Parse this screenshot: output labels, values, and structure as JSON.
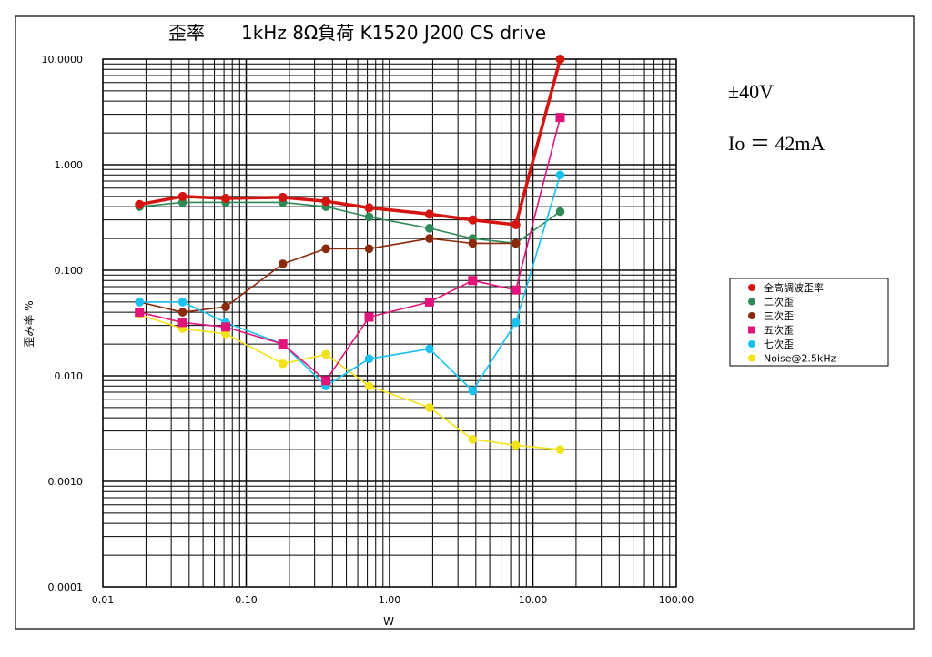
{
  "chart_data": {
    "type": "line",
    "title": "歪率　　1kHz 8Ω負荷  K1520  J200  CS drive",
    "xlabel": "W",
    "ylabel": "歪み率 %",
    "x_scale": "log",
    "y_scale": "log",
    "xlim": [
      0.01,
      100
    ],
    "ylim": [
      0.0001,
      10
    ],
    "grid": true,
    "legend_position": "right",
    "x_tick_labels": [
      "0.01",
      "0.10",
      "1.00",
      "10.00",
      "100.00"
    ],
    "y_tick_labels": [
      "0.0001",
      "0.0010",
      "0.010",
      "0.100",
      "1.000",
      "10.0000"
    ],
    "annotations": [
      "±40V",
      "Io ＝ 42mA"
    ],
    "series": [
      {
        "name": "全高調波歪率",
        "color": "#d4140f",
        "marker": "circle",
        "x": [
          0.018,
          0.036,
          0.072,
          0.18,
          0.36,
          0.72,
          1.9,
          3.8,
          7.6,
          15.5
        ],
        "y": [
          0.42,
          0.5,
          0.48,
          0.49,
          0.45,
          0.39,
          0.34,
          0.3,
          0.27,
          10
        ]
      },
      {
        "name": "二次歪",
        "color": "#2e8b57",
        "marker": "circle",
        "x": [
          0.018,
          0.036,
          0.072,
          0.18,
          0.36,
          0.72,
          1.9,
          3.8,
          7.6,
          15.5
        ],
        "y": [
          0.4,
          0.44,
          0.44,
          0.44,
          0.4,
          0.32,
          0.25,
          0.2,
          0.18,
          0.36
        ]
      },
      {
        "name": "三次歪",
        "color": "#8b2a0b",
        "marker": "circle",
        "x": [
          0.018,
          0.036,
          0.072,
          0.18,
          0.36,
          0.72,
          1.9,
          3.8,
          7.6
        ],
        "y": [
          0.05,
          0.04,
          0.045,
          0.115,
          0.16,
          0.16,
          0.2,
          0.18,
          0.18
        ]
      },
      {
        "name": "五次歪",
        "color": "#e0147a",
        "marker": "square",
        "x": [
          0.018,
          0.036,
          0.072,
          0.18,
          0.36,
          0.72,
          1.9,
          3.8,
          7.6,
          15.5
        ],
        "y": [
          0.04,
          0.032,
          0.029,
          0.02,
          0.009,
          0.036,
          0.05,
          0.08,
          0.065,
          2.8
        ]
      },
      {
        "name": "七次歪",
        "color": "#18c1ef",
        "marker": "circle",
        "x": [
          0.018,
          0.036,
          0.072,
          0.18,
          0.36,
          0.72,
          1.9,
          3.8,
          7.6,
          15.5
        ],
        "y": [
          0.05,
          0.05,
          0.032,
          0.02,
          0.008,
          0.0145,
          0.018,
          0.0072,
          0.032,
          0.8
        ]
      },
      {
        "name": "Noise@2.5kHz",
        "color": "#f2e21a",
        "marker": "circle",
        "x": [
          0.018,
          0.036,
          0.072,
          0.18,
          0.36,
          0.72,
          1.9,
          3.8,
          7.6,
          15.5
        ],
        "y": [
          0.038,
          0.028,
          0.025,
          0.013,
          0.016,
          0.008,
          0.005,
          0.0025,
          0.0022,
          0.002
        ]
      }
    ]
  }
}
